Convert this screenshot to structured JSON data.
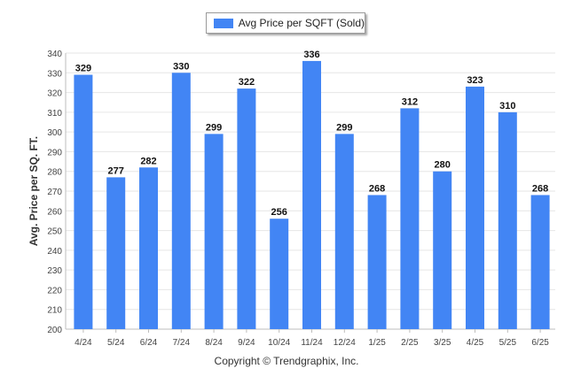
{
  "chart_data": {
    "type": "bar",
    "categories": [
      "4/24",
      "5/24",
      "6/24",
      "7/24",
      "8/24",
      "9/24",
      "10/24",
      "11/24",
      "12/24",
      "1/25",
      "2/25",
      "3/25",
      "4/25",
      "5/25",
      "6/25"
    ],
    "series": [
      {
        "name": "Avg Price per SQFT (Sold)",
        "values": [
          329,
          277,
          282,
          330,
          299,
          322,
          256,
          336,
          299,
          268,
          312,
          280,
          323,
          310,
          268
        ]
      }
    ],
    "ylabel": "Avg. Price per SQ. FT.",
    "ylim": [
      200,
      340
    ],
    "yticks": [
      200,
      210,
      220,
      230,
      240,
      250,
      260,
      270,
      280,
      290,
      300,
      310,
      320,
      330,
      340
    ],
    "grid": true,
    "legend_position": "top-center",
    "bar_color": "#4285f4"
  },
  "footer": {
    "copyright": "Copyright © Trendgraphix, Inc."
  }
}
